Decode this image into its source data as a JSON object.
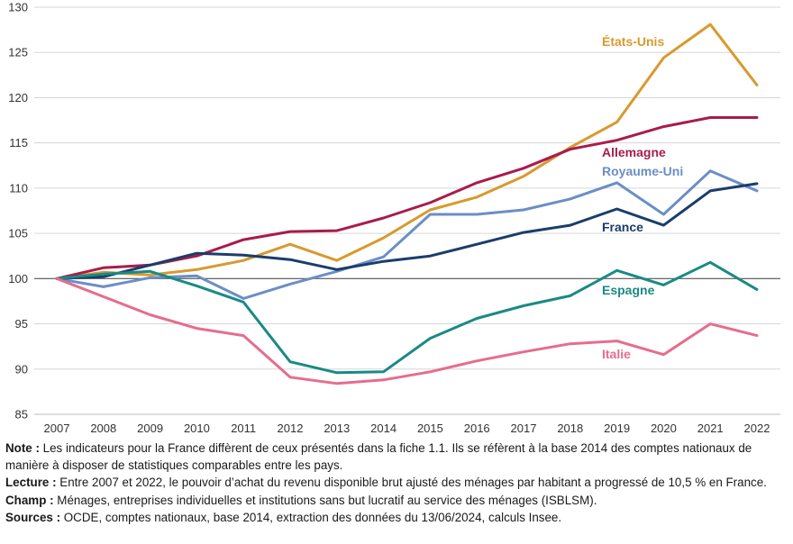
{
  "chart_data": {
    "type": "line",
    "x": [
      2007,
      2008,
      2009,
      2010,
      2011,
      2012,
      2013,
      2014,
      2015,
      2016,
      2017,
      2018,
      2019,
      2020,
      2021,
      2022
    ],
    "ylim": [
      85,
      130
    ],
    "yticks": [
      85,
      90,
      95,
      100,
      105,
      110,
      115,
      120,
      125,
      130
    ],
    "reference_line": 100,
    "grid": "horizontal",
    "series": [
      {
        "name": "États-Unis",
        "color": "#d89a2e",
        "values": [
          100,
          100.7,
          100.4,
          101.0,
          102.0,
          103.8,
          102.0,
          104.5,
          107.6,
          109.0,
          111.3,
          114.5,
          117.3,
          124.4,
          128.1,
          121.4
        ]
      },
      {
        "name": "Allemagne",
        "color": "#a81c4b",
        "values": [
          100,
          101.2,
          101.5,
          102.5,
          104.3,
          105.2,
          105.3,
          106.7,
          108.4,
          110.6,
          112.2,
          114.3,
          115.3,
          116.8,
          117.8,
          117.8
        ]
      },
      {
        "name": "Royaume-Uni",
        "color": "#6b8ec6",
        "values": [
          100,
          99.1,
          100.1,
          100.3,
          97.8,
          99.4,
          100.8,
          102.4,
          107.1,
          107.1,
          107.6,
          108.8,
          110.6,
          107.1,
          111.9,
          109.7
        ]
      },
      {
        "name": "France",
        "color": "#1a3d6b",
        "values": [
          100,
          100.2,
          101.5,
          102.8,
          102.6,
          102.1,
          101.0,
          101.9,
          102.5,
          103.8,
          105.1,
          105.9,
          107.7,
          105.9,
          109.7,
          110.5
        ]
      },
      {
        "name": "Espagne",
        "color": "#1a8a84",
        "values": [
          100,
          100.5,
          100.8,
          99.2,
          97.4,
          90.8,
          89.6,
          89.7,
          93.4,
          95.6,
          97.0,
          98.1,
          100.9,
          99.3,
          101.8,
          98.8
        ]
      },
      {
        "name": "Italie",
        "color": "#e56d8c",
        "values": [
          100,
          98.0,
          96.0,
          94.5,
          93.7,
          89.1,
          88.4,
          88.8,
          89.7,
          90.9,
          91.9,
          92.8,
          93.1,
          91.6,
          95.0,
          93.7
        ]
      }
    ]
  },
  "notes": [
    {
      "key": "Note :",
      "text": " Les indicateurs pour la France diffèrent de ceux présentés dans la fiche 1.1. Ils se réfèrent à la base 2014 des comptes nationaux de manière à disposer de statistiques comparables entre les pays."
    },
    {
      "key": "Lecture :",
      "text": " Entre 2007 et 2022, le pouvoir d’achat du revenu disponible brut ajusté des ménages par habitant a progressé de 10,5 % en France."
    },
    {
      "key": "Champ :",
      "text": " Ménages, entreprises individuelles et institutions sans but lucratif au service des ménages (ISBLSM)."
    },
    {
      "key": "Sources :",
      "text": " OCDE, comptes nationaux, base 2014, extraction des données du 13/06/2024, calculs Insee."
    }
  ]
}
